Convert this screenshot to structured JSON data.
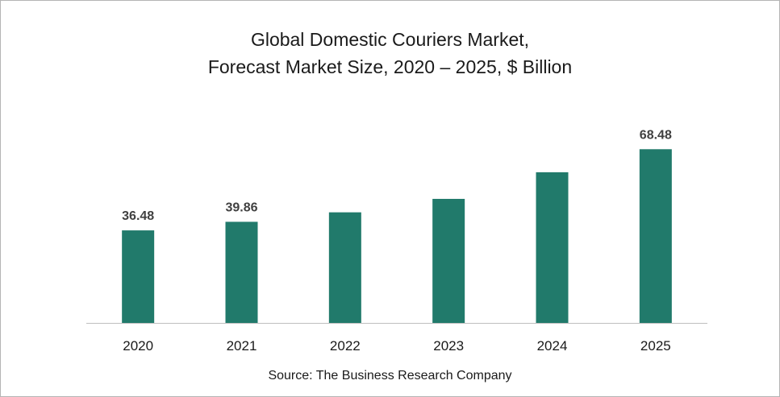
{
  "chart_data": {
    "type": "bar",
    "title": "Global Domestic Couriers Market,",
    "subtitle": "Forecast Market Size, 2020 – 2025, $ Billion",
    "categories": [
      "2020",
      "2021",
      "2022",
      "2023",
      "2024",
      "2025"
    ],
    "values": [
      36.48,
      39.86,
      43.6,
      48.9,
      59.4,
      68.48
    ],
    "data_labels": [
      "36.48",
      "39.86",
      "",
      "",
      "",
      "68.48"
    ],
    "ylim": [
      0,
      100
    ],
    "grid": false,
    "bar_color": "#217a6b"
  },
  "source": "Source: The Business Research Company"
}
